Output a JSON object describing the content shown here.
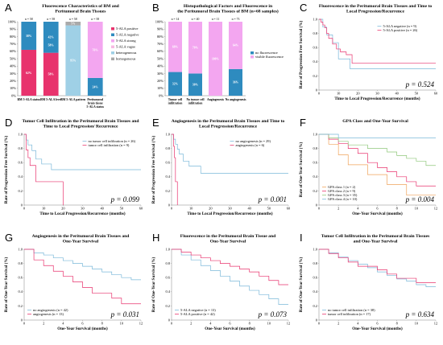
{
  "panels": [
    {
      "label": "A",
      "title": [
        "Fluorescence Characteristics of BM and",
        "Peritumoral Brain Tissues"
      ],
      "chart_data": {
        "type": "bar",
        "stacked": true,
        "categories": [
          "BM 5-ALA status",
          "BM 5-ALA level",
          "BM 5-ALA pattern",
          "Peritumoral brain tissue 5-ALA status"
        ],
        "n_labels": [
          "n = 58",
          "n = 58",
          "n = 58",
          "n = 58"
        ],
        "series": [
          {
            "name": "5-ALA positive",
            "color": "#e8336d",
            "values": [
              62,
              58,
              0,
              0
            ],
            "labels": [
              "62%",
              "58%",
              "",
              ""
            ]
          },
          {
            "name": "5-ALA negative",
            "color": "#2e8bbf",
            "values": [
              38,
              42,
              0,
              24
            ],
            "labels": [
              "38%",
              "42%",
              "",
              "24%"
            ]
          },
          {
            "name": "5-ALA strong",
            "color": "#f3a6f0",
            "values": [
              0,
              0,
              0,
              76
            ],
            "labels": [
              "",
              "",
              "",
              "76%"
            ]
          },
          {
            "name": "5-ALA vague",
            "color": "#f7b9e2",
            "values": [
              0,
              0,
              0,
              0
            ],
            "labels": [
              "",
              "",
              "",
              ""
            ]
          },
          {
            "name": "heterogeneous",
            "color": "#9fd0e6",
            "values": [
              0,
              0,
              95,
              0
            ],
            "labels": [
              "",
              "",
              "95%",
              ""
            ]
          },
          {
            "name": "homogeneous",
            "color": "#a9a9a9",
            "values": [
              0,
              0,
              5,
              0
            ],
            "labels": [
              "",
              "",
              "5%",
              ""
            ]
          }
        ],
        "mid_label": {
          "category": 1,
          "text": "58%"
        },
        "yticks": [
          "0%",
          "10%",
          "20%",
          "30%",
          "40%",
          "50%",
          "60%",
          "70%",
          "80%",
          "90%",
          "100%"
        ],
        "ylim": [
          0,
          100
        ]
      }
    },
    {
      "label": "B",
      "title": [
        "Histopathological Factors and Fluorescence in",
        "the Peritumoral Brain Tissues of BM (n=68 samples)"
      ],
      "chart_data": {
        "type": "bar",
        "stacked": true,
        "categories": [
          "Tumor cell infiltration",
          "No tumor cell infiltration",
          "Angiogenesis",
          "No angiogenesis"
        ],
        "n_labels": [
          "n = 14",
          "n = 40",
          "n = 11",
          "n = 73"
        ],
        "series": [
          {
            "name": "no fluorescence",
            "color": "#2e8bbf",
            "values": [
              32,
              30,
              0,
              36
            ],
            "labels": [
              "32%",
              "30%",
              "",
              "36%"
            ]
          },
          {
            "name": "visible fluorescence",
            "color": "#f3a6f0",
            "values": [
              68,
              70,
              100,
              64
            ],
            "labels": [
              "68%",
              "70%",
              "100%",
              "64%"
            ]
          }
        ],
        "yticks": [
          "0%",
          "10%",
          "20%",
          "30%",
          "40%",
          "50%",
          "60%",
          "70%",
          "80%",
          "90%",
          "100%"
        ],
        "ylim": [
          0,
          100
        ]
      }
    },
    {
      "label": "C",
      "title": [
        "Fluorescence in the Peritumoral Brain Tissues and Time to",
        "Local Progression/Recurrence"
      ],
      "xlabel": "Time to Local Progression/Recurrence (months)",
      "ylabel": "Rate of Progression Free Survival (%)",
      "pvalue": "p = 0.524",
      "legend_pos": "top-right",
      "chart_data": {
        "type": "line",
        "step": true,
        "xlim": [
          0,
          60
        ],
        "xticks": [
          0,
          10,
          20,
          30,
          40,
          50,
          60
        ],
        "ylim": [
          0,
          1
        ],
        "yticks": [
          0,
          0.2,
          0.4,
          0.6,
          0.8,
          1.0
        ],
        "ytick_labels": [
          "0",
          "0.2",
          "0.4",
          "0.6",
          "0.8",
          "1.0"
        ],
        "series": [
          {
            "name": "5-ALA negative (n = 9)",
            "color": "#7ab8d9",
            "x": [
              0,
              2,
              4,
              7,
              10,
              16,
              60
            ],
            "y": [
              1.0,
              0.89,
              0.78,
              0.67,
              0.44,
              0.3,
              0.3
            ]
          },
          {
            "name": "5-ALA positive (n = 26)",
            "color": "#e8336d",
            "x": [
              0,
              1,
              2,
              3,
              4,
              5,
              7,
              9,
              11,
              14,
              17,
              52,
              60
            ],
            "y": [
              1.0,
              0.96,
              0.92,
              0.88,
              0.8,
              0.73,
              0.65,
              0.58,
              0.54,
              0.5,
              0.38,
              0.38,
              0.38
            ]
          }
        ]
      }
    },
    {
      "label": "D",
      "title": [
        "Tumor Cell Infiltration in the Peritumoral Brain Tissues and",
        "Time to Local Progression/ Recurrence"
      ],
      "xlabel": "Time to Local Progression/Recurrence (months)",
      "ylabel": "Rate of Progression Free Survival (%)",
      "pvalue": "p = 0.099",
      "legend_pos": "top-right",
      "chart_data": {
        "type": "line",
        "step": true,
        "xlim": [
          0,
          60
        ],
        "xticks": [
          0,
          10,
          20,
          30,
          40,
          50,
          60
        ],
        "ylim": [
          0,
          1
        ],
        "yticks": [
          0,
          0.2,
          0.4,
          0.6,
          0.8,
          1.0
        ],
        "ytick_labels": [
          "0",
          "0.2",
          "0.4",
          "0.6",
          "0.8",
          "1.0"
        ],
        "series": [
          {
            "name": "no tumor cell infiltration (n = 26)",
            "color": "#7ab8d9",
            "x": [
              0,
              1,
              2,
              4,
              6,
              9,
              14,
              60
            ],
            "y": [
              1.0,
              0.92,
              0.85,
              0.77,
              0.65,
              0.58,
              0.5,
              0.5
            ]
          },
          {
            "name": "tumor cell infiltration (n = 9)",
            "color": "#e8336d",
            "x": [
              0,
              1,
              2,
              3,
              6,
              20
            ],
            "y": [
              1.0,
              0.78,
              0.67,
              0.56,
              0.33,
              0.0
            ]
          }
        ]
      }
    },
    {
      "label": "E",
      "title": [
        "Angiogenesis in the Peritumoral Brain Tissues and Time to",
        "Local Progression/Recurrence"
      ],
      "xlabel": "Time to Local Progression/Recurrence (months)",
      "ylabel": "Rate of Progression Free Survival (%)",
      "pvalue": "p = 0.001",
      "legend_pos": "top-right",
      "chart_data": {
        "type": "line",
        "step": true,
        "xlim": [
          0,
          60
        ],
        "xticks": [
          0,
          10,
          20,
          30,
          40,
          50,
          60
        ],
        "ylim": [
          0,
          1
        ],
        "yticks": [
          0,
          0.2,
          0.4,
          0.6,
          0.8,
          1.0
        ],
        "ytick_labels": [
          "0",
          "0.2",
          "0.4",
          "0.6",
          "0.8",
          "1.0"
        ],
        "series": [
          {
            "name": "no angiogenesis (n = 29)",
            "color": "#7ab8d9",
            "x": [
              0,
              1,
              2,
              3,
              4,
              6,
              9,
              15,
              60
            ],
            "y": [
              1.0,
              0.93,
              0.86,
              0.79,
              0.72,
              0.62,
              0.55,
              0.45,
              0.45
            ]
          },
          {
            "name": "angiogenesis (n = 6)",
            "color": "#e8336d",
            "x": [
              0,
              1,
              1.5,
              2,
              3
            ],
            "y": [
              1.0,
              0.83,
              0.67,
              0.33,
              0.0
            ]
          }
        ]
      }
    },
    {
      "label": "F",
      "title": [
        "GPA Class and One-Year Survival"
      ],
      "xlabel": "One-Year Survival (months)",
      "ylabel": "Rate of One-Year Survival (%)",
      "pvalue": "p = 0.004",
      "legend_pos": "bottom-left",
      "chart_data": {
        "type": "line",
        "step": true,
        "xlim": [
          0,
          12
        ],
        "xticks": [
          0,
          2,
          4,
          6,
          8,
          10,
          12
        ],
        "ylim": [
          0,
          1
        ],
        "yticks": [
          0,
          0.2,
          0.4,
          0.6,
          0.8,
          1.0
        ],
        "ytick_labels": [
          "0",
          "0.2",
          "0.4",
          "0.6",
          "0.8",
          "1.0"
        ],
        "series": [
          {
            "name": "GPA class 1 (n = 2)",
            "color": "#f0a35a",
            "x": [
              0,
              1,
              2,
              3,
              5,
              7,
              9,
              12
            ],
            "y": [
              1.0,
              0.86,
              0.71,
              0.57,
              0.43,
              0.29,
              0.14,
              0.14
            ]
          },
          {
            "name": "GPA class 2 (n = 9)",
            "color": "#e8336d",
            "x": [
              0,
              1,
              2,
              3,
              4,
              5,
              6,
              7,
              8,
              9,
              10,
              12
            ],
            "y": [
              1.0,
              0.93,
              0.87,
              0.8,
              0.73,
              0.6,
              0.53,
              0.47,
              0.4,
              0.33,
              0.27,
              0.27
            ]
          },
          {
            "name": "GPA class 3 (n = 35)",
            "color": "#8fc77a",
            "x": [
              0,
              1,
              2,
              3,
              5,
              7,
              8,
              9,
              10,
              11,
              12
            ],
            "y": [
              1.0,
              0.95,
              0.9,
              0.85,
              0.8,
              0.75,
              0.7,
              0.66,
              0.62,
              0.56,
              0.56
            ]
          },
          {
            "name": "GPA class 4 (n = 10)",
            "color": "#7ab8d9",
            "x": [
              0,
              2,
              12
            ],
            "y": [
              1.0,
              0.95,
              0.95
            ]
          }
        ]
      }
    },
    {
      "label": "G",
      "title": [
        "Angiogenesis in the Peritumoral Brain Tissues and",
        "One-Year Survival"
      ],
      "xlabel": "One-Year Survival (months)",
      "ylabel": "Rate of One-Year Survival (%)",
      "pvalue": "p = 0.031",
      "legend_pos": "bottom-left",
      "chart_data": {
        "type": "line",
        "step": true,
        "xlim": [
          0,
          12
        ],
        "xticks": [
          0,
          2,
          4,
          6,
          8,
          10,
          12
        ],
        "ylim": [
          0,
          1
        ],
        "yticks": [
          0,
          0.2,
          0.4,
          0.6,
          0.8,
          1.0
        ],
        "ytick_labels": [
          "0",
          "0.2",
          "0.4",
          "0.6",
          "0.8",
          "1.0"
        ],
        "series": [
          {
            "name": "no angiogenesis (n = 42)",
            "color": "#7ab8d9",
            "x": [
              0,
              1,
              2,
              3,
              4,
              5,
              6,
              7,
              8,
              9,
              10,
              11,
              12
            ],
            "y": [
              1.0,
              0.95,
              0.92,
              0.88,
              0.84,
              0.8,
              0.76,
              0.72,
              0.68,
              0.64,
              0.6,
              0.57,
              0.57
            ]
          },
          {
            "name": "angiogenesis (n = 13)",
            "color": "#e8336d",
            "x": [
              0,
              1,
              2,
              3,
              4,
              5,
              6,
              7,
              9,
              10,
              12
            ],
            "y": [
              1.0,
              0.85,
              0.77,
              0.69,
              0.62,
              0.54,
              0.46,
              0.38,
              0.31,
              0.23,
              0.23
            ]
          }
        ]
      }
    },
    {
      "label": "H",
      "title": [
        "Fluorescence in the Peritumoral Brain Tissue and",
        "One-Year Survival"
      ],
      "xlabel": "One-Year Survival (months)",
      "ylabel": "Rate of One-Year Survival (%)",
      "pvalue": "p = 0.073",
      "legend_pos": "bottom-left",
      "chart_data": {
        "type": "line",
        "step": true,
        "xlim": [
          0,
          12
        ],
        "xticks": [
          0,
          2,
          4,
          6,
          8,
          10,
          12
        ],
        "ylim": [
          0,
          1
        ],
        "yticks": [
          0,
          0.2,
          0.4,
          0.6,
          0.8,
          1.0
        ],
        "ytick_labels": [
          "0",
          "0.2",
          "0.4",
          "0.6",
          "0.8",
          "1.0"
        ],
        "series": [
          {
            "name": "5-ALA negative (n = 13)",
            "color": "#7ab8d9",
            "x": [
              0,
              1,
              2,
              3,
              4,
              5,
              6,
              7,
              8,
              9,
              10,
              11,
              12
            ],
            "y": [
              1.0,
              0.92,
              0.85,
              0.77,
              0.7,
              0.62,
              0.55,
              0.48,
              0.42,
              0.36,
              0.3,
              0.22,
              0.22
            ]
          },
          {
            "name": "5-ALA positive (n = 42)",
            "color": "#e8336d",
            "x": [
              0,
              1,
              2,
              3,
              4,
              5,
              6,
              7,
              8,
              9,
              10,
              11,
              12
            ],
            "y": [
              1.0,
              0.96,
              0.92,
              0.88,
              0.84,
              0.8,
              0.76,
              0.72,
              0.68,
              0.62,
              0.56,
              0.5,
              0.5
            ]
          }
        ]
      }
    },
    {
      "label": "I",
      "title": [
        "Tumor Cell Infiltration in the Peritumoral Brain Tissues",
        "and One-Year Survival"
      ],
      "xlabel": "One-Year Survival (months)",
      "ylabel": "Rate of One-Year Survival (%)",
      "pvalue": "p = 0.634",
      "legend_pos": "bottom-left",
      "chart_data": {
        "type": "line",
        "step": true,
        "xlim": [
          0,
          12
        ],
        "xticks": [
          0,
          2,
          4,
          6,
          8,
          10,
          12
        ],
        "ylim": [
          0,
          1
        ],
        "yticks": [
          0,
          0.2,
          0.4,
          0.6,
          0.8,
          1.0
        ],
        "ytick_labels": [
          "0",
          "0.2",
          "0.4",
          "0.6",
          "0.8",
          "1.0"
        ],
        "series": [
          {
            "name": "no tumor cell infiltration (n = 38)",
            "color": "#7ab8d9",
            "x": [
              0,
              1,
              2,
              3,
              4,
              5,
              6,
              7,
              8,
              9,
              10,
              11,
              12
            ],
            "y": [
              1.0,
              0.95,
              0.89,
              0.84,
              0.79,
              0.74,
              0.68,
              0.63,
              0.58,
              0.55,
              0.5,
              0.47,
              0.47
            ]
          },
          {
            "name": "tumor cell infiltration (n = 17)",
            "color": "#e8336d",
            "x": [
              0,
              1,
              2,
              3,
              4,
              6,
              7,
              8,
              9,
              10,
              12
            ],
            "y": [
              1.0,
              0.94,
              0.88,
              0.82,
              0.76,
              0.71,
              0.65,
              0.59,
              0.59,
              0.53,
              0.53
            ]
          }
        ]
      }
    }
  ]
}
